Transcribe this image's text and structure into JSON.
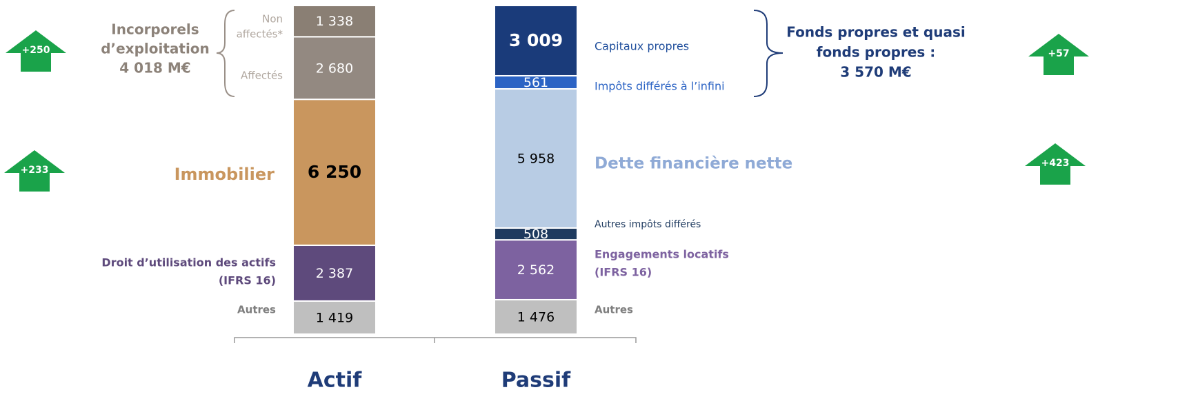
{
  "chart_data": {
    "type": "stacked_bar",
    "categories": [
      "Actif",
      "Passif"
    ],
    "bars": [
      {
        "segments": [
          {
            "label": [
              "Autres"
            ],
            "value": 1419,
            "value_label": "1 419",
            "color": "#bfbfbf",
            "label_color": "#7f7f7f",
            "text_color": "#000000"
          },
          {
            "label": [
              "Droit d’utilisation des actifs",
              "(IFRS 16)"
            ],
            "value": 2387,
            "value_label": "2 387",
            "color": "#5e4a7c",
            "label_color": "#5e4a7c",
            "text_color": "#ffffff"
          },
          {
            "label": [
              "Immobilier"
            ],
            "value": 6250,
            "value_label": "6 250",
            "color": "#c9965e",
            "label_color": "#c9965e",
            "text_color": "#000000"
          },
          {
            "label": [
              "Affectés"
            ],
            "value": 2680,
            "value_label": "2 680",
            "color": "#938981",
            "label_color": "#b0a79f",
            "text_color": "#ffffff"
          },
          {
            "label": [
              "Non",
              "affectés*"
            ],
            "value": 1338,
            "value_label": "1 338",
            "color": "#8a7f74",
            "label_color": "#b0a79f",
            "text_color": "#ffffff"
          }
        ]
      },
      {
        "segments": [
          {
            "label": [
              "Autres"
            ],
            "value": 1476,
            "value_label": "1 476",
            "color": "#bfbfbf",
            "label_color": "#7f7f7f",
            "text_color": "#000000"
          },
          {
            "label": [
              "Engagements locatifs",
              "(IFRS 16)"
            ],
            "value": 2562,
            "value_label": "2 562",
            "color": "#7d62a0",
            "label_color": "#7d62a0",
            "text_color": "#ffffff"
          },
          {
            "label": [
              "Autres impôts différés"
            ],
            "value": 508,
            "value_label": "508",
            "color": "#1e3a5f",
            "label_color": "#1e3a5f",
            "text_color": "#ffffff"
          },
          {
            "label": [
              "Dette financière nette"
            ],
            "value": 5958,
            "value_label": "5 958",
            "color": "#b8cce4",
            "label_color": "#8faad6",
            "text_color": "#000000"
          },
          {
            "label": [
              "Impôts différés à l’infini"
            ],
            "value": 561,
            "value_label": "561",
            "color": "#2b63c4",
            "label_color": "#2b63c4",
            "text_color": "#ffffff"
          },
          {
            "label": [
              "Capitaux propres"
            ],
            "value": 3009,
            "value_label": "3 009",
            "color": "#1a3b7a",
            "label_color": "#1f4e9c",
            "text_color": "#ffffff"
          }
        ]
      }
    ],
    "brace_labels": [
      {
        "lines": [
          "Incorporels",
          "d’exploitation",
          "4 018 M€"
        ],
        "color": "#8c8279"
      },
      {
        "lines": [
          "Fonds propres et quasi",
          "fonds propres :",
          "3 570 M€"
        ],
        "color": "#1f3c78"
      }
    ],
    "annotations": [
      "+250",
      "+233",
      "+57",
      "+423"
    ],
    "annotation_color": "#1aa34a"
  }
}
